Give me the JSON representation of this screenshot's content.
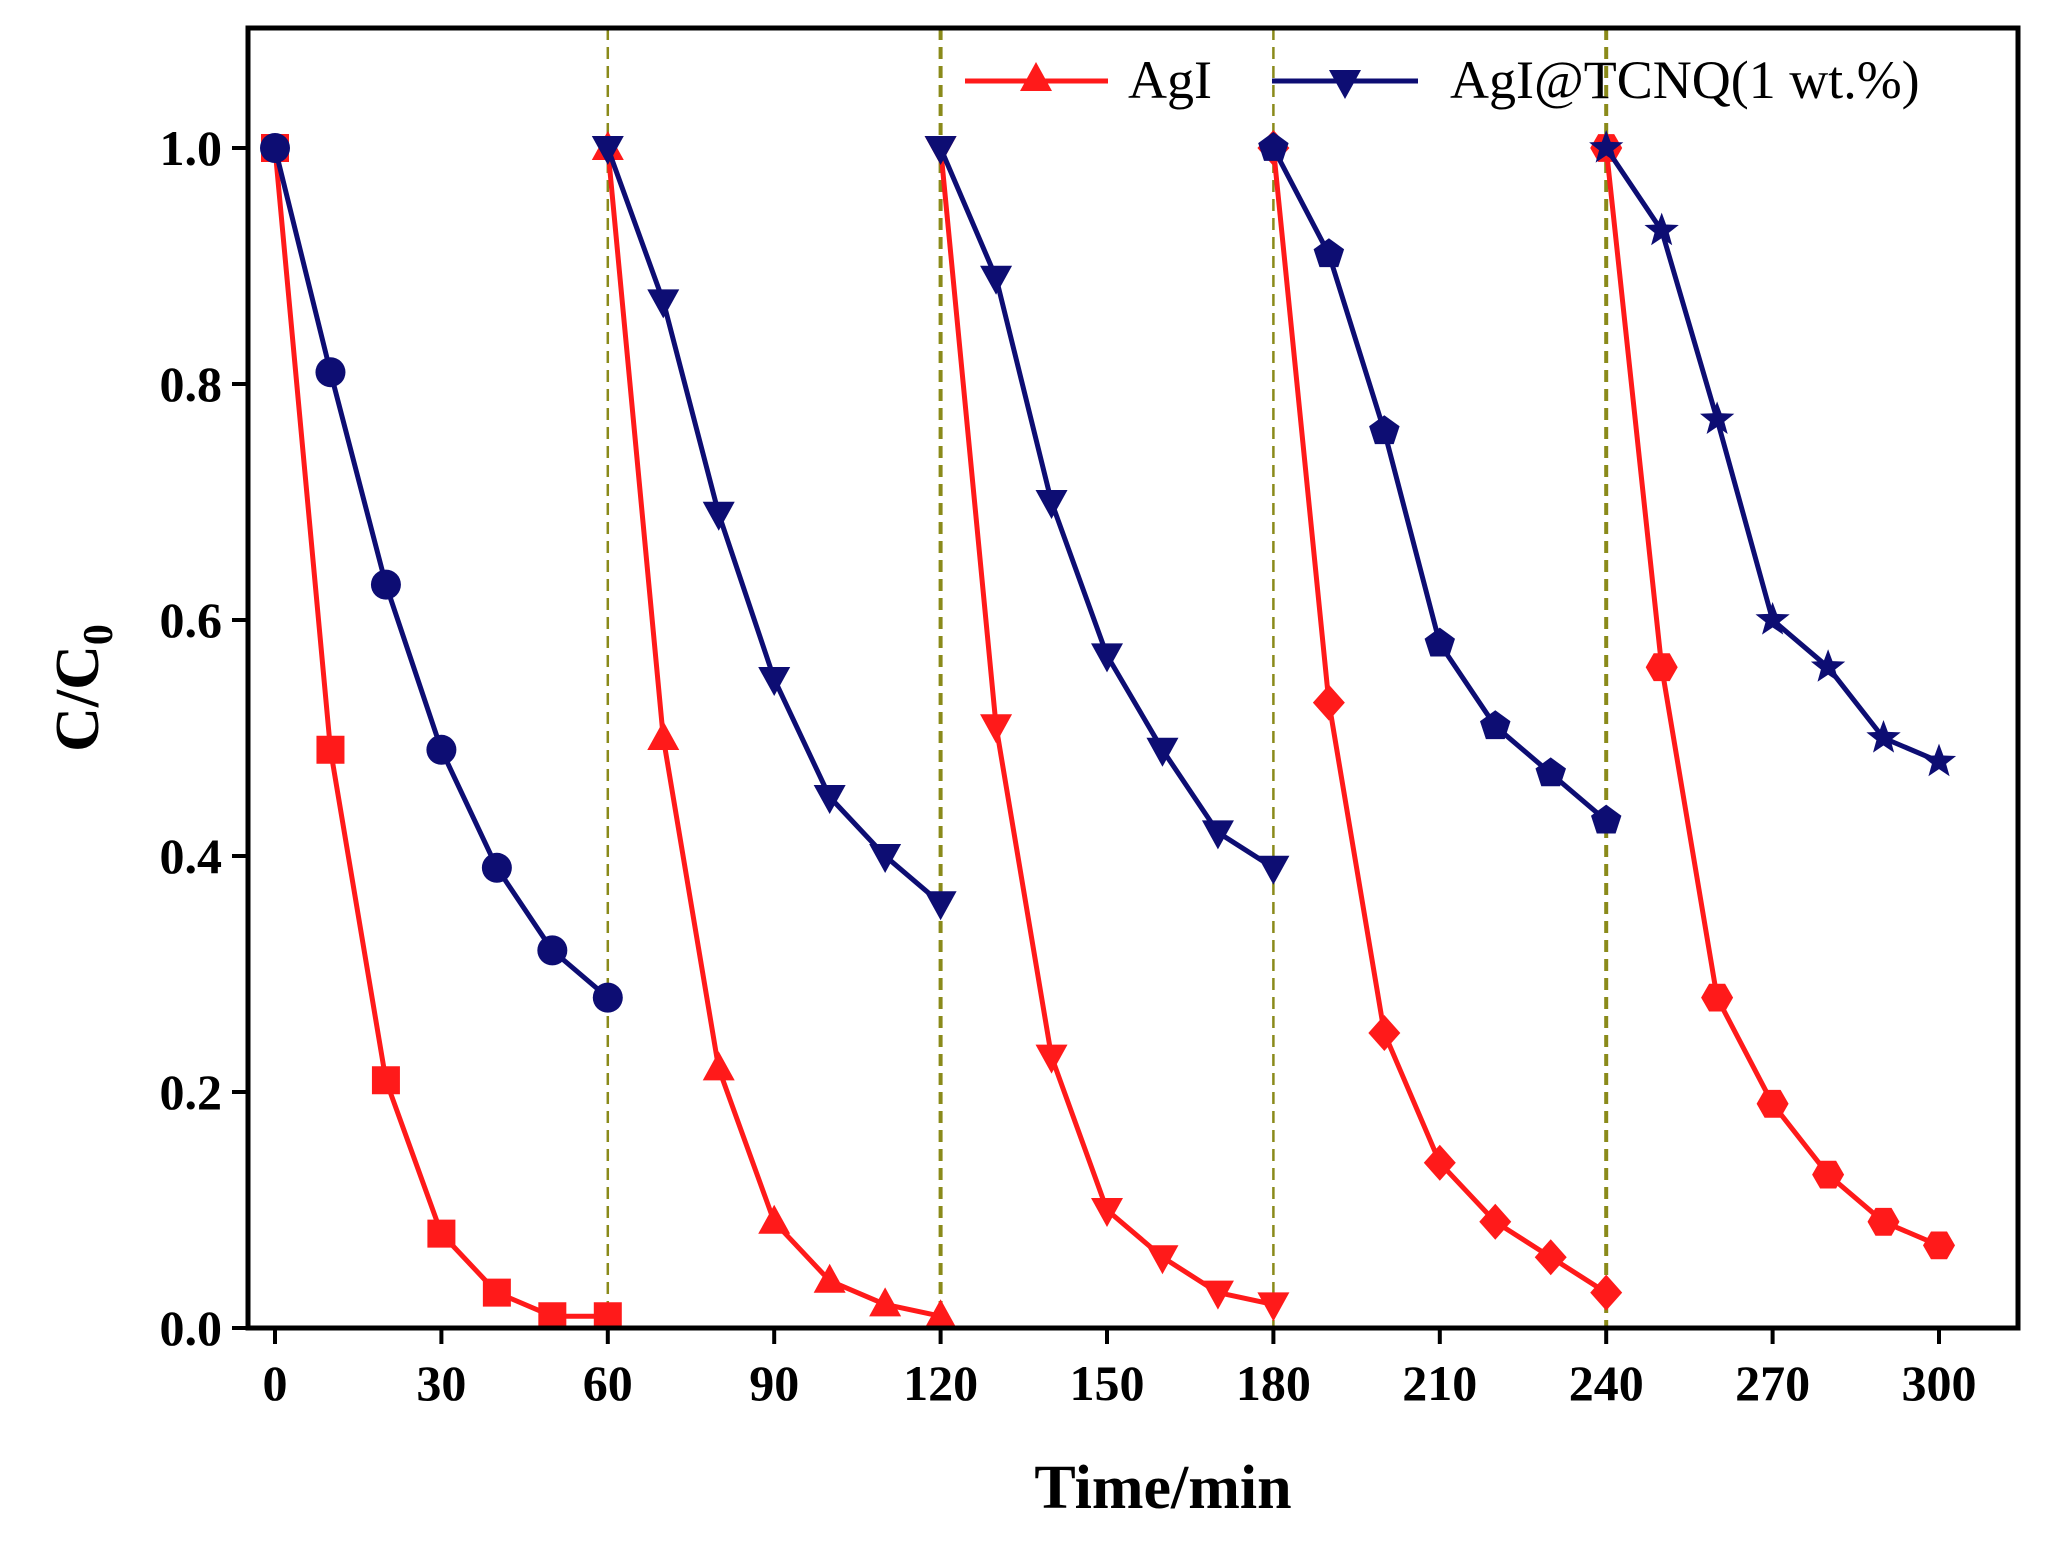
{
  "chart_data": {
    "type": "line",
    "title": "",
    "xlabel": "Time/min",
    "ylabel_main": "C/C",
    "ylabel_sub": "0",
    "xlim": [
      -10,
      310
    ],
    "ylim": [
      0,
      1.1
    ],
    "xticks": [
      0,
      30,
      60,
      90,
      120,
      150,
      180,
      210,
      240,
      270,
      300
    ],
    "xtick_labels": [
      "0",
      "30",
      "60",
      "90",
      "120",
      "150",
      "180",
      "210",
      "240",
      "270",
      "300"
    ],
    "yticks": [
      0,
      0.2,
      0.4,
      0.6,
      0.8,
      1.0
    ],
    "ytick_labels": [
      "0.0",
      "0.2",
      "0.4",
      "0.6",
      "0.8",
      "1.0"
    ],
    "cycle_separators": [
      60,
      120,
      180,
      240
    ],
    "legend_position": "top-right",
    "series": [
      {
        "name": "AgI",
        "color": "#ff1a1a",
        "legend_marker": "triangle-up",
        "segments": [
          {
            "marker": "square",
            "x": [
              0,
              10,
              20,
              30,
              40,
              50,
              60
            ],
            "y": [
              1.0,
              0.49,
              0.21,
              0.08,
              0.03,
              0.01,
              0.01
            ]
          },
          {
            "marker": "triangle-up",
            "x": [
              60,
              70,
              80,
              90,
              100,
              110,
              120
            ],
            "y": [
              1.0,
              0.5,
              0.22,
              0.09,
              0.04,
              0.02,
              0.01
            ]
          },
          {
            "marker": "triangle-down",
            "x": [
              120,
              130,
              140,
              150,
              160,
              170,
              180
            ],
            "y": [
              1.0,
              0.51,
              0.23,
              0.1,
              0.06,
              0.03,
              0.02
            ]
          },
          {
            "marker": "diamond",
            "x": [
              180,
              190,
              200,
              210,
              220,
              230,
              240
            ],
            "y": [
              1.0,
              0.53,
              0.25,
              0.14,
              0.09,
              0.06,
              0.03
            ]
          },
          {
            "marker": "hexagon",
            "x": [
              240,
              250,
              260,
              270,
              280,
              290,
              300
            ],
            "y": [
              1.0,
              0.56,
              0.28,
              0.19,
              0.13,
              0.09,
              0.07
            ]
          }
        ]
      },
      {
        "name": "AgI@TCNQ(1 wt.%)",
        "color": "#0d0d73",
        "legend_marker": "triangle-down",
        "segments": [
          {
            "marker": "circle",
            "x": [
              0,
              10,
              20,
              30,
              40,
              50,
              60
            ],
            "y": [
              1.0,
              0.81,
              0.63,
              0.49,
              0.39,
              0.32,
              0.28
            ]
          },
          {
            "marker": "triangle-down",
            "x": [
              60,
              70,
              80,
              90,
              100,
              110,
              120
            ],
            "y": [
              1.0,
              0.87,
              0.69,
              0.55,
              0.45,
              0.4,
              0.36
            ]
          },
          {
            "marker": "triangle-down",
            "x": [
              120,
              130,
              140,
              150,
              160,
              170,
              180
            ],
            "y": [
              1.0,
              0.89,
              0.7,
              0.57,
              0.49,
              0.42,
              0.39
            ]
          },
          {
            "marker": "pentagon",
            "x": [
              180,
              190,
              200,
              210,
              220,
              230,
              240
            ],
            "y": [
              1.0,
              0.91,
              0.76,
              0.58,
              0.51,
              0.47,
              0.43
            ]
          },
          {
            "marker": "star",
            "x": [
              240,
              250,
              260,
              270,
              280,
              290,
              300
            ],
            "y": [
              1.0,
              0.93,
              0.77,
              0.6,
              0.56,
              0.5,
              0.48
            ]
          }
        ]
      }
    ]
  }
}
